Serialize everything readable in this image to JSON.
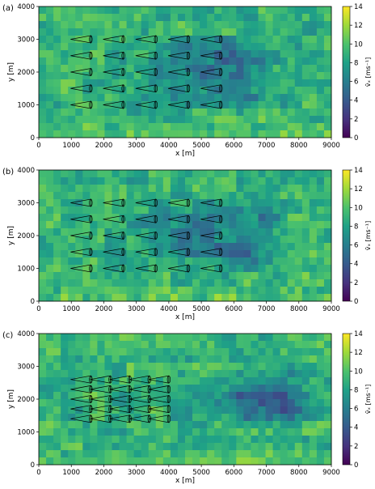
{
  "figure": {
    "colorbar_label": "v̄ₓ [ms⁻¹]",
    "colormap": "viridis"
  },
  "chart_data": [
    {
      "type": "heatmap",
      "panel_label": "(a)",
      "xlabel": "x [m]",
      "ylabel": "y [m]",
      "xlim": [
        0,
        9000
      ],
      "ylim": [
        0,
        4000
      ],
      "xticks": [
        "0",
        "1000",
        "2000",
        "3000",
        "4000",
        "5000",
        "6000",
        "7000",
        "8000",
        "9000"
      ],
      "yticks": [
        "0",
        "1000",
        "2000",
        "3000",
        "4000"
      ],
      "colorbar": {
        "label": "v̄ₓ [ms⁻¹]",
        "min": 0,
        "max": 14,
        "ticks": [
          "0",
          "2",
          "4",
          "6",
          "8",
          "10",
          "12",
          "14"
        ]
      },
      "turbine_x": [
        1600,
        2600,
        3600,
        4600,
        5600
      ],
      "turbine_y": [
        1000,
        1500,
        2000,
        2500,
        3000
      ],
      "wake_start_x": 1800,
      "wake_end_x": 6200,
      "wake_min_speed": 5.5,
      "wake_y_min": 700,
      "wake_y_max": 3300,
      "ambient_speed": 9
    },
    {
      "type": "heatmap",
      "panel_label": "(b)",
      "xlabel": "x [m]",
      "ylabel": "y [m]",
      "xlim": [
        0,
        9000
      ],
      "ylim": [
        0,
        4000
      ],
      "xticks": [
        "0",
        "1000",
        "2000",
        "3000",
        "4000",
        "5000",
        "6000",
        "7000",
        "8000",
        "9000"
      ],
      "yticks": [
        "0",
        "1000",
        "2000",
        "3000",
        "4000"
      ],
      "colorbar": {
        "label": "v̄ₓ [ms⁻¹]",
        "min": 0,
        "max": 14,
        "ticks": [
          "0",
          "2",
          "4",
          "6",
          "8",
          "10",
          "12",
          "14"
        ]
      },
      "turbine_x": [
        1600,
        2600,
        3600,
        4600,
        5600
      ],
      "turbine_y": [
        1000,
        1500,
        2000,
        2500,
        3000
      ],
      "wake_start_x": 1800,
      "wake_end_x": 6500,
      "wake_min_speed": 6.0,
      "wake_y_min": 700,
      "wake_y_max": 3300,
      "ambient_speed": 9
    },
    {
      "type": "heatmap",
      "panel_label": "(c)",
      "xlabel": "x [m]",
      "ylabel": "y [m]",
      "xlim": [
        0,
        9000
      ],
      "ylim": [
        0,
        4000
      ],
      "xticks": [
        "0",
        "1000",
        "2000",
        "3000",
        "4000",
        "5000",
        "6000",
        "7000",
        "8000",
        "9000"
      ],
      "yticks": [
        "0",
        "1000",
        "2000",
        "3000",
        "4000"
      ],
      "colorbar": {
        "label": "v̄ₓ [ms⁻¹]",
        "min": 0,
        "max": 14,
        "ticks": [
          "0",
          "2",
          "4",
          "6",
          "8",
          "10",
          "12",
          "14"
        ]
      },
      "turbine_x": [
        1600,
        2200,
        2800,
        3400,
        4000
      ],
      "turbine_y": [
        1400,
        1700,
        2000,
        2300,
        2600
      ],
      "wake_start_x": 3500,
      "wake_end_x": 7500,
      "wake_min_speed": 5.0,
      "wake_y_min": 1100,
      "wake_y_max": 2900,
      "ambient_speed": 9
    }
  ]
}
